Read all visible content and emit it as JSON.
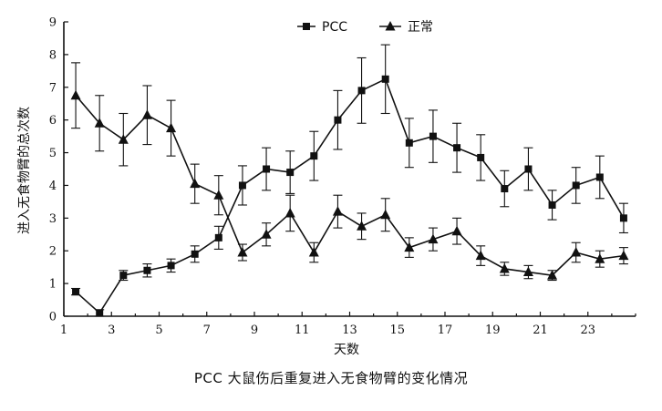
{
  "caption": "PCC 大鼠伤后重复进入无食物臂的变化情况",
  "chart_data": {
    "type": "line",
    "title": "",
    "xlabel": "天数",
    "ylabel": "进入无食物臂的总次数",
    "xlim": [
      1,
      25
    ],
    "ylim": [
      0,
      9
    ],
    "x_ticks": [
      1,
      3,
      5,
      7,
      9,
      11,
      13,
      15,
      17,
      19,
      21,
      23
    ],
    "y_ticks": [
      0,
      1,
      2,
      3,
      4,
      5,
      6,
      7,
      8,
      9
    ],
    "legend_position": "top-center",
    "x": [
      1.5,
      2.5,
      3.5,
      4.5,
      5.5,
      6.5,
      7.5,
      8.5,
      9.5,
      10.5,
      11.5,
      12.5,
      13.5,
      14.5,
      15.5,
      16.5,
      17.5,
      18.5,
      19.5,
      20.5,
      21.5,
      22.5,
      23.5,
      24.5
    ],
    "series": [
      {
        "name": "PCC",
        "marker": "square",
        "values": [
          0.75,
          0.1,
          1.25,
          1.4,
          1.55,
          1.9,
          2.4,
          4.0,
          4.5,
          4.4,
          4.9,
          6.0,
          6.9,
          7.25,
          5.3,
          5.5,
          5.15,
          4.85,
          3.9,
          4.5,
          3.4,
          4.0,
          4.25,
          3.0
        ],
        "errors": [
          0.1,
          0.1,
          0.15,
          0.2,
          0.2,
          0.25,
          0.35,
          0.6,
          0.65,
          0.65,
          0.75,
          0.9,
          1.0,
          1.05,
          0.75,
          0.8,
          0.75,
          0.7,
          0.55,
          0.65,
          0.45,
          0.55,
          0.65,
          0.45
        ]
      },
      {
        "name": "正常",
        "marker": "triangle",
        "values": [
          6.75,
          5.9,
          5.4,
          6.15,
          5.75,
          4.05,
          3.7,
          1.95,
          2.5,
          3.15,
          1.95,
          3.2,
          2.75,
          3.1,
          2.1,
          2.35,
          2.6,
          1.85,
          1.45,
          1.35,
          1.25,
          1.95,
          1.75,
          1.85
        ]
      }
    ],
    "series_errors": [
      [
        0.1,
        0.1,
        0.15,
        0.2,
        0.2,
        0.25,
        0.35,
        0.6,
        0.65,
        0.65,
        0.75,
        0.9,
        1.0,
        1.05,
        0.75,
        0.8,
        0.75,
        0.7,
        0.55,
        0.65,
        0.45,
        0.55,
        0.65,
        0.45
      ],
      [
        1.0,
        0.85,
        0.8,
        0.9,
        0.85,
        0.6,
        0.6,
        0.25,
        0.35,
        0.55,
        0.3,
        0.5,
        0.4,
        0.5,
        0.3,
        0.35,
        0.4,
        0.3,
        0.2,
        0.2,
        0.15,
        0.3,
        0.25,
        0.25
      ]
    ]
  }
}
